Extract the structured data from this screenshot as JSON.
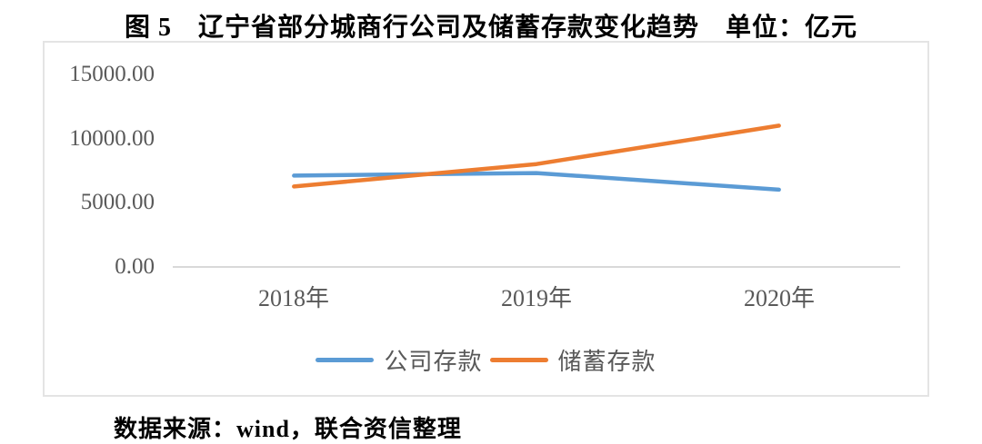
{
  "title": "图 5　辽宁省部分城商行公司及储蓄存款变化趋势　单位：亿元",
  "source": "数据来源：wind，联合资信整理",
  "chart_data": {
    "type": "line",
    "title": "图 5 辽宁省部分城商行公司及储蓄存款变化趋势",
    "unit": "亿元",
    "categories": [
      "2018年",
      "2019年",
      "2020年"
    ],
    "series": [
      {
        "name": "公司存款",
        "color": "#5B9BD5",
        "values": [
          7100,
          7300,
          6000
        ]
      },
      {
        "name": "储蓄存款",
        "color": "#ED7D31",
        "values": [
          6250,
          8000,
          11000
        ]
      }
    ],
    "yticks": [
      "15000.00",
      "10000.00",
      "5000.00",
      "0.00"
    ],
    "ylim": [
      0,
      15000
    ],
    "legend_position": "bottom",
    "grid": false
  },
  "colors": {
    "axis_text": "#595959",
    "axis_line": "#D9D9D9",
    "frame_border": "#E4E4E4"
  }
}
